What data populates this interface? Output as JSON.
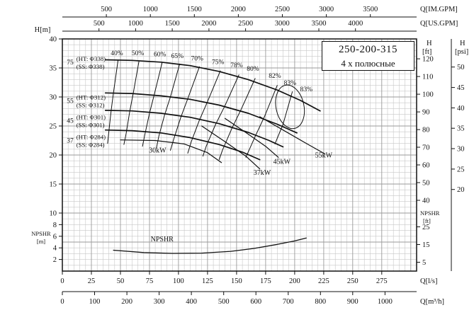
{
  "title_box": {
    "model": "250-200-315",
    "subtitle": "4 х полюсные"
  },
  "chart_data": {
    "type": "line",
    "title": "Pump performance curves 250-200-315, 4-pole: head vs flow with efficiency, power and NPSHR curves",
    "x_axis": {
      "label": "Q[l/s]",
      "min": 0,
      "max": 305
    },
    "y_axis": {
      "label": "H[m]",
      "min": 0,
      "max": 40
    },
    "grid": {
      "q_minor": 5,
      "q_major": 25,
      "h_minor": 1,
      "h_major": 5
    },
    "axes": {
      "top": [
        {
          "label": "Q[IM.GPM]",
          "ticks": [
            500,
            1000,
            1500,
            2000,
            2500,
            3000,
            3500
          ],
          "to_lps": 0.0757682
        },
        {
          "label": "Q[US.GPM]",
          "ticks": [
            500,
            1000,
            1500,
            2000,
            2500,
            3000,
            3500,
            4000
          ],
          "to_lps": 0.0630902
        }
      ],
      "bottom": [
        {
          "label": "Q[l/s]",
          "ticks": [
            0,
            25,
            50,
            75,
            100,
            125,
            150,
            175,
            200,
            225,
            250,
            275
          ],
          "to_lps": 1
        },
        {
          "label": "Q[m³/h]",
          "ticks": [
            0,
            100,
            200,
            300,
            400,
            500,
            600,
            700,
            800,
            900,
            1000
          ],
          "to_lps": 0.277778
        }
      ],
      "left": {
        "label": "H[m]",
        "ticks": [
          40,
          35,
          30,
          25,
          20,
          15,
          10
        ],
        "npshr_label": [
          "NPSHR",
          "[m]"
        ],
        "npshr_ticks": [
          8,
          6,
          4,
          2
        ]
      },
      "right_ft": {
        "label": [
          "H",
          "[ft]"
        ],
        "ticks": [
          120,
          110,
          100,
          90,
          80,
          70,
          60,
          50,
          40
        ],
        "to_m": 0.3048,
        "npshr_label": [
          "NPSHR",
          "[ft]"
        ],
        "npshr_ticks": [
          25,
          15,
          5
        ]
      },
      "right_psi": {
        "label": [
          "H",
          "[psi]"
        ],
        "ticks": [
          50,
          45,
          40,
          35,
          30,
          25,
          20
        ],
        "to_m": 0.70307
      }
    },
    "head_curves": [
      {
        "impeller": "Φ338",
        "power": "75",
        "ht": "(HT: Φ338)",
        "ss": "(SS: Φ338)",
        "label_q": 12,
        "label_h": 36.0,
        "points": [
          [
            37,
            36.4
          ],
          [
            60,
            36.3
          ],
          [
            85,
            36.0
          ],
          [
            110,
            35.4
          ],
          [
            135,
            34.4
          ],
          [
            160,
            33.0
          ],
          [
            185,
            31.2
          ],
          [
            205,
            29.4
          ],
          [
            222,
            27.6
          ]
        ]
      },
      {
        "impeller": "Φ312",
        "power": "55",
        "ht": "(HT: Φ312)",
        "ss": "(SS: Φ312)",
        "label_q": 12,
        "label_h": 29.3,
        "points": [
          [
            37,
            30.7
          ],
          [
            60,
            30.6
          ],
          [
            85,
            30.2
          ],
          [
            110,
            29.6
          ],
          [
            135,
            28.6
          ],
          [
            160,
            27.2
          ],
          [
            185,
            25.3
          ],
          [
            202,
            23.8
          ]
        ]
      },
      {
        "impeller": "Φ301",
        "power": "45",
        "ht": "(HT: Φ301)",
        "ss": "(SS: Φ301)",
        "label_q": 12,
        "label_h": 25.9,
        "points": [
          [
            37,
            27.7
          ],
          [
            60,
            27.6
          ],
          [
            85,
            27.2
          ],
          [
            110,
            26.5
          ],
          [
            135,
            25.4
          ],
          [
            160,
            23.9
          ],
          [
            178,
            22.5
          ],
          [
            190,
            21.4
          ]
        ]
      },
      {
        "impeller": "Φ284",
        "power": "37",
        "ht": "(HT: Φ284)",
        "ss": "(SS: Φ284)",
        "label_q": 12,
        "label_h": 22.5,
        "points": [
          [
            37,
            24.3
          ],
          [
            60,
            24.2
          ],
          [
            85,
            23.8
          ],
          [
            110,
            23.0
          ],
          [
            135,
            21.8
          ],
          [
            155,
            20.5
          ],
          [
            170,
            19.2
          ]
        ]
      }
    ],
    "efficiency_lines": [
      {
        "label": "40%",
        "label_at": [
          47,
          37.2
        ],
        "points": [
          [
            48,
            36.4
          ],
          [
            44,
            30.7
          ],
          [
            42,
            27.7
          ],
          [
            40,
            24.0
          ],
          [
            39,
            22.0
          ]
        ]
      },
      {
        "label": "50%",
        "label_at": [
          65,
          37.2
        ],
        "points": [
          [
            66,
            36.2
          ],
          [
            61,
            30.6
          ],
          [
            58,
            27.5
          ],
          [
            55,
            23.8
          ],
          [
            53,
            21.8
          ]
        ]
      },
      {
        "label": "60%",
        "label_at": [
          84,
          37.0
        ],
        "points": [
          [
            86,
            36.0
          ],
          [
            79,
            30.3
          ],
          [
            75,
            27.2
          ],
          [
            71,
            23.5
          ],
          [
            69,
            21.5
          ]
        ]
      },
      {
        "label": "65%",
        "label_at": [
          99,
          36.7
        ],
        "points": [
          [
            101,
            35.7
          ],
          [
            93,
            30.0
          ],
          [
            88,
            26.9
          ],
          [
            83,
            23.2
          ],
          [
            81,
            21.2
          ]
        ]
      },
      {
        "label": "70%",
        "label_at": [
          116,
          36.3
        ],
        "points": [
          [
            118,
            35.2
          ],
          [
            108,
            29.7
          ],
          [
            102,
            26.5
          ],
          [
            96,
            22.8
          ],
          [
            93,
            20.8
          ]
        ]
      },
      {
        "label": "75%",
        "label_at": [
          134,
          35.7
        ],
        "points": [
          [
            136,
            34.5
          ],
          [
            125,
            29.2
          ],
          [
            118,
            26.0
          ],
          [
            111,
            22.3
          ],
          [
            108,
            20.3
          ]
        ]
      },
      {
        "label": "78%",
        "label_at": [
          150,
          35.1
        ],
        "points": [
          [
            152,
            33.8
          ],
          [
            140,
            28.5
          ],
          [
            132,
            25.3
          ],
          [
            124,
            21.6
          ],
          [
            121,
            19.8
          ]
        ]
      },
      {
        "label": "80%",
        "label_at": [
          164,
          34.5
        ],
        "points": [
          [
            166,
            33.2
          ],
          [
            154,
            27.9
          ],
          [
            146,
            24.6
          ],
          [
            138,
            20.9
          ],
          [
            135,
            19.2
          ]
        ]
      },
      {
        "label": "82%",
        "label_at": [
          183,
          33.3
        ],
        "points": [
          [
            185,
            32.0
          ],
          [
            174,
            26.6
          ],
          [
            166,
            23.2
          ],
          [
            158,
            19.6
          ]
        ]
      },
      {
        "label": "83%",
        "label_at": [
          196,
          32.1
        ],
        "points": [
          [
            198,
            30.9
          ],
          [
            190,
            25.3
          ],
          [
            183,
            21.9
          ]
        ]
      }
    ],
    "efficiency_island": {
      "label": "83%",
      "label_at": [
        210,
        31.0
      ],
      "center": [
        196,
        28.3
      ],
      "rq": 12,
      "rh": 3.8,
      "rotation_deg": -12
    },
    "power_lines": [
      {
        "label": "30kW",
        "label_at": [
          82,
          20.4
        ],
        "points": [
          [
            50,
            22.6
          ],
          [
            80,
            22.5
          ],
          [
            105,
            21.9
          ],
          [
            125,
            20.4
          ],
          [
            137,
            18.7
          ]
        ]
      },
      {
        "label": "37kW",
        "label_at": [
          172,
          16.6
        ],
        "points": [
          [
            120,
            25.0
          ],
          [
            140,
            22.3
          ],
          [
            158,
            19.8
          ],
          [
            170,
            17.6
          ]
        ]
      },
      {
        "label": "45kW",
        "label_at": [
          189,
          18.5
        ],
        "points": [
          [
            140,
            26.3
          ],
          [
            160,
            23.6
          ],
          [
            175,
            21.5
          ],
          [
            186,
            19.6
          ]
        ]
      },
      {
        "label": "55kW",
        "label_at": [
          225,
          19.6
        ],
        "points": [
          [
            170,
            26.6
          ],
          [
            190,
            24.3
          ],
          [
            210,
            22.0
          ],
          [
            226,
            20.2
          ]
        ]
      }
    ],
    "npshr_curve": {
      "label": "NPSHR",
      "label_at": [
        76,
        5.1
      ],
      "points": [
        [
          44,
          3.6
        ],
        [
          70,
          3.2
        ],
        [
          95,
          3.05
        ],
        [
          120,
          3.1
        ],
        [
          145,
          3.4
        ],
        [
          165,
          3.9
        ],
        [
          185,
          4.6
        ],
        [
          200,
          5.2
        ],
        [
          210,
          5.7
        ]
      ]
    }
  }
}
